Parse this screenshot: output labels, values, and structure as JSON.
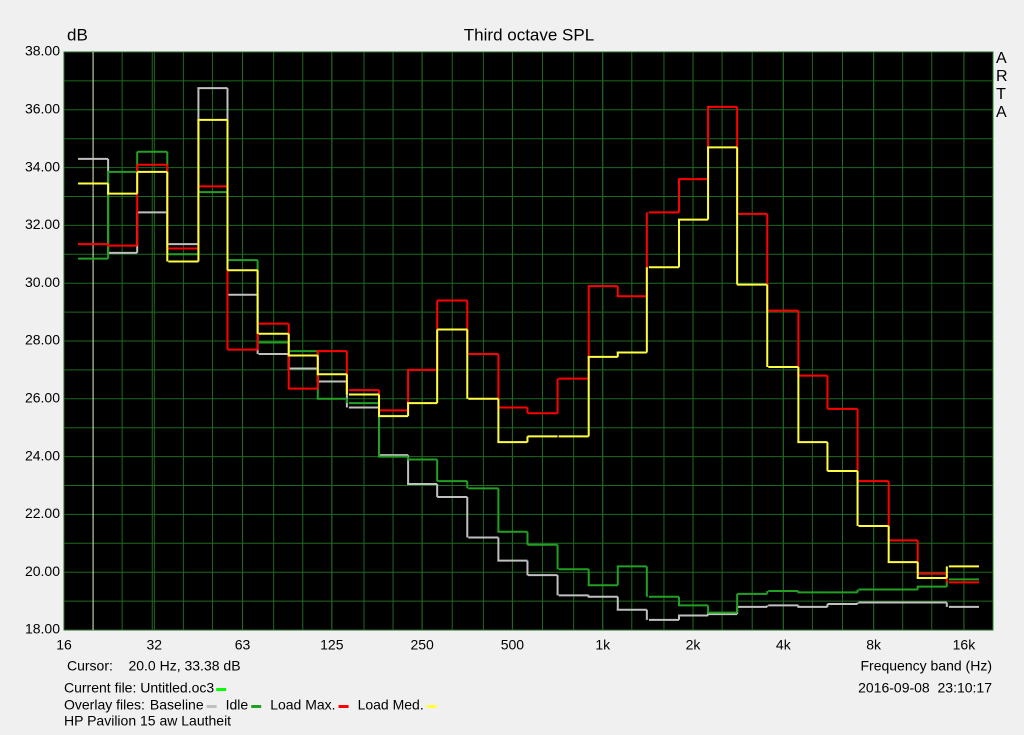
{
  "chart_data": {
    "type": "step",
    "title": "Third octave SPL",
    "y_label": "dB",
    "x_label": "Frequency band (Hz)",
    "side_label": "ARTA",
    "log_x": true,
    "grid": true,
    "x": [
      20,
      25,
      31.5,
      40,
      50,
      63,
      80,
      100,
      125,
      160,
      200,
      250,
      315,
      400,
      500,
      630,
      800,
      1000,
      1250,
      1600,
      2000,
      2500,
      3150,
      4000,
      5000,
      6300,
      8000,
      10000,
      12500,
      16000
    ],
    "xlim": [
      16,
      20000
    ],
    "xticks": [
      16,
      32,
      63,
      125,
      250,
      500,
      {
        "value": 1000,
        "label": "1k"
      },
      {
        "value": 2000,
        "label": "2k"
      },
      {
        "value": 4000,
        "label": "4k"
      },
      {
        "value": 8000,
        "label": "8k"
      },
      {
        "value": 16000,
        "label": "16k"
      }
    ],
    "ylim": [
      18,
      38
    ],
    "yticks": [
      {
        "value": 18,
        "label": "18.00"
      },
      {
        "value": 20,
        "label": "20.00"
      },
      {
        "value": 22,
        "label": "22.00"
      },
      {
        "value": 24,
        "label": "24.00"
      },
      {
        "value": 26,
        "label": "26.00"
      },
      {
        "value": 28,
        "label": "28.00"
      },
      {
        "value": 30,
        "label": "30.00"
      },
      {
        "value": 32,
        "label": "32.00"
      },
      {
        "value": 34,
        "label": "34.00"
      },
      {
        "value": 36,
        "label": "36.00"
      },
      {
        "value": 38,
        "label": "38.00"
      }
    ],
    "series": [
      {
        "name": "Baseline",
        "color": "#c0c0c0",
        "values": [
          34.3,
          31.05,
          32.45,
          31.35,
          36.75,
          29.6,
          27.55,
          27.05,
          26.6,
          25.7,
          24.05,
          23.05,
          22.6,
          21.2,
          20.4,
          19.9,
          19.2,
          19.15,
          18.7,
          18.35,
          18.5,
          18.55,
          18.8,
          18.85,
          18.8,
          18.9,
          18.95,
          18.95,
          18.95,
          18.8
        ]
      },
      {
        "name": "Idle",
        "color": "#22a022",
        "values": [
          30.85,
          33.85,
          34.55,
          31.0,
          33.15,
          30.8,
          27.95,
          27.65,
          26.0,
          25.85,
          24.0,
          23.9,
          23.15,
          22.9,
          21.4,
          20.95,
          20.1,
          19.55,
          20.2,
          19.15,
          18.85,
          18.6,
          19.25,
          19.35,
          19.3,
          19.3,
          19.4,
          19.4,
          19.5,
          19.75
        ]
      },
      {
        "name": "Load Max.",
        "color": "#ff0000",
        "values": [
          31.35,
          31.3,
          34.1,
          31.2,
          33.35,
          27.7,
          28.6,
          26.35,
          27.65,
          26.3,
          25.6,
          27.0,
          29.4,
          27.55,
          25.7,
          25.5,
          26.7,
          29.9,
          29.55,
          32.45,
          33.6,
          36.1,
          32.4,
          29.05,
          26.8,
          25.65,
          23.15,
          21.1,
          19.95,
          19.65
        ]
      },
      {
        "name": "Load Med.",
        "color": "#ffff40",
        "values": [
          33.45,
          33.1,
          33.85,
          30.75,
          35.65,
          30.45,
          28.25,
          27.5,
          26.85,
          26.15,
          25.4,
          25.85,
          28.4,
          26.0,
          24.5,
          24.7,
          24.7,
          27.45,
          27.6,
          30.55,
          32.2,
          34.7,
          29.95,
          27.1,
          24.5,
          23.5,
          21.6,
          20.35,
          19.8,
          20.2
        ]
      }
    ],
    "cursor": "Cursor:    20.0 Hz, 33.38 dB",
    "current_file": "Current file: Untitled.oc3",
    "current_file_color": "#00ff00",
    "overlay_label": "Overlay files:",
    "timestamp": "2016-09-08  23:10:17",
    "note": "HP Pavilion 15 aw Lautheit"
  }
}
